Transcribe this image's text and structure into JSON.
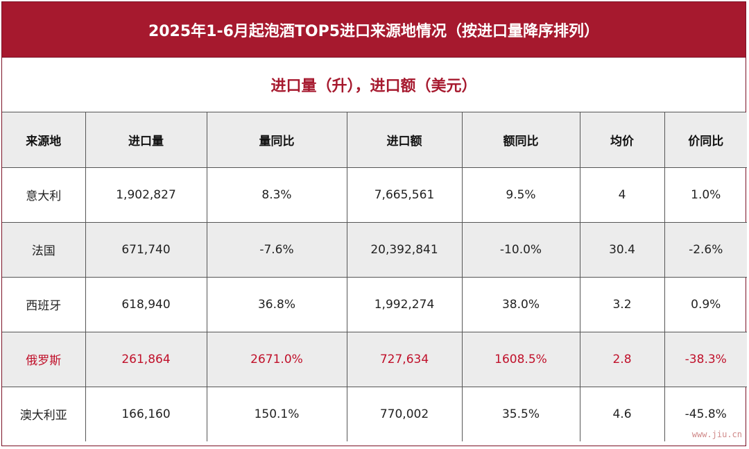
{
  "title": "2025年1-6月起泡酒TOP5进口来源地情况（按进口量降序排列）",
  "subtitle": "进口量（升），进口额（美元）",
  "watermark": "www.jiu.cn",
  "colors": {
    "header_bg": "#a6192e",
    "highlight_text": "#c0102a",
    "shade_bg": "#ececec"
  },
  "chart_data": {
    "type": "table",
    "columns": [
      "来源地",
      "进口量",
      "量同比",
      "进口额",
      "额同比",
      "均价",
      "价同比"
    ],
    "rows": [
      [
        "意大利",
        "1,902,827",
        "8.3%",
        "7,665,561",
        "9.5%",
        "4",
        "1.0%"
      ],
      [
        "法国",
        "671,740",
        "-7.6%",
        "20,392,841",
        "-10.0%",
        "30.4",
        "-2.6%"
      ],
      [
        "西班牙",
        "618,940",
        "36.8%",
        "1,992,274",
        "38.0%",
        "3.2",
        "0.9%"
      ],
      [
        "俄罗斯",
        "261,864",
        "2671.0%",
        "727,634",
        "1608.5%",
        "2.8",
        "-38.3%"
      ],
      [
        "澳大利亚",
        "166,160",
        "150.1%",
        "770,002",
        "35.5%",
        "4.6",
        "-45.8%"
      ]
    ],
    "highlighted_row": "俄罗斯"
  }
}
